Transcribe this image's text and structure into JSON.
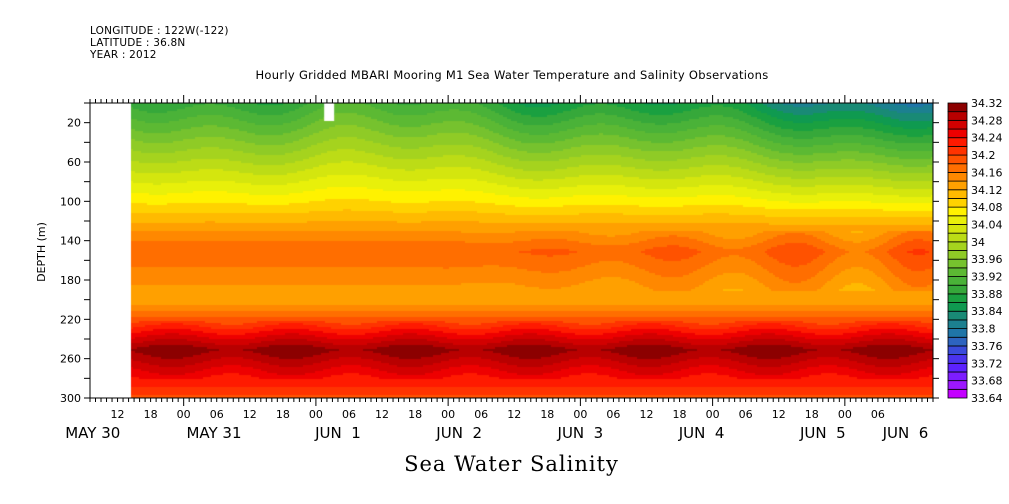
{
  "header": {
    "longitude": "LONGITUDE : 122W(-122)",
    "latitude": "LATITUDE : 36.8N",
    "year": "YEAR : 2012"
  },
  "chart_data": {
    "type": "heatmap",
    "title": "Hourly Gridded MBARI Mooring M1 Sea Water Temperature and Salinity Observations",
    "xlabel": "Sea Water Salinity",
    "ylabel": "DEPTH (m)",
    "y_axis": {
      "range": [
        0,
        300
      ],
      "inverted": true,
      "ticks": [
        20,
        60,
        100,
        140,
        180,
        220,
        260,
        300
      ],
      "tick_labels": [
        "20",
        "60",
        "100",
        "140",
        "180",
        "220",
        "260",
        "300"
      ]
    },
    "x_axis": {
      "unit": "hours since 2012-05-30 00:00",
      "range": [
        7,
        160
      ],
      "data_start": 14.5,
      "hour_ticks": [
        12,
        18,
        24,
        30,
        36,
        42,
        48,
        54,
        60,
        66,
        72,
        78,
        84,
        90,
        96,
        102,
        108,
        114,
        120,
        126,
        132,
        138,
        144,
        150
      ],
      "hour_tick_labels": [
        "12",
        "18",
        "00",
        "06",
        "12",
        "18",
        "00",
        "06",
        "12",
        "18",
        "00",
        "06",
        "12",
        "18",
        "00",
        "06",
        "12",
        "18",
        "00",
        "06",
        "12",
        "18",
        "00",
        "06"
      ],
      "day_labels": [
        {
          "text": "MAY 30",
          "at": 7.5
        },
        {
          "text": "MAY 31",
          "at": 29.5
        },
        {
          "text": "JUN  1",
          "at": 52
        },
        {
          "text": "JUN  2",
          "at": 74
        },
        {
          "text": "JUN  3",
          "at": 96
        },
        {
          "text": "JUN  4",
          "at": 118
        },
        {
          "text": "JUN  5",
          "at": 140
        },
        {
          "text": "JUN  6",
          "at": 155
        }
      ]
    },
    "colorbar": {
      "min": 33.64,
      "max": 34.32,
      "interval": 0.02,
      "labels": [
        "34.32",
        "34.28",
        "34.24",
        "34.2",
        "34.16",
        "34.12",
        "34.08",
        "34.04",
        "34",
        "33.96",
        "33.92",
        "33.88",
        "33.84",
        "33.8",
        "33.76",
        "33.72",
        "33.68",
        "33.64"
      ],
      "colors_bottom_to_top": [
        "#c400ff",
        "#9d17ff",
        "#7d1dff",
        "#5c22ff",
        "#4a33ee",
        "#3a4bdc",
        "#2d64c0",
        "#1f75a8",
        "#1c8090",
        "#198a75",
        "#0f9a50",
        "#1aa040",
        "#36a83a",
        "#4ab238",
        "#5cb933",
        "#76c22e",
        "#8fcb26",
        "#a5d31e",
        "#bcdc16",
        "#d4e60e",
        "#e8f00a",
        "#fff200",
        "#ffd200",
        "#ffba00",
        "#ffa000",
        "#ff8800",
        "#ff6e00",
        "#ff5200",
        "#ff3300",
        "#ff1a00",
        "#ee0000",
        "#d20000",
        "#b80000",
        "#8c0000"
      ]
    },
    "field_description_points": {
      "surface_salinity_approx": 33.9,
      "depth_100m_salinity_approx": 34.08,
      "depth_150m_salinity_approx": 34.18,
      "depth_250m_salinity_approx": 34.3,
      "depth_300m_salinity_approx": 34.2
    }
  }
}
